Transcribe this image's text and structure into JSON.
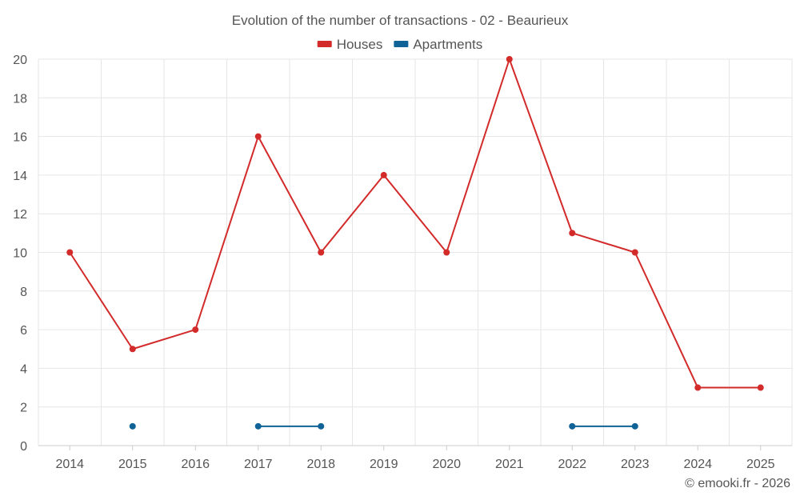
{
  "chart_data": {
    "type": "line",
    "title": "Evolution of the number of transactions - 02 - Beaurieux",
    "credit": "© emooki.fr - 2026",
    "categories": [
      "2014",
      "2015",
      "2016",
      "2017",
      "2018",
      "2019",
      "2020",
      "2021",
      "2022",
      "2023",
      "2024",
      "2025"
    ],
    "ylim": [
      0,
      20
    ],
    "yticks": [
      0,
      2,
      4,
      6,
      8,
      10,
      12,
      14,
      16,
      18,
      20
    ],
    "grid": true,
    "legend_position": "top-center",
    "series": [
      {
        "name": "Houses",
        "color": "#d32a2a",
        "values": [
          10,
          5,
          6,
          16,
          10,
          14,
          10,
          20,
          11,
          10,
          3,
          3
        ]
      },
      {
        "name": "Apartments",
        "color": "#0f6397",
        "values": [
          null,
          1,
          null,
          1,
          1,
          null,
          null,
          null,
          1,
          1,
          null,
          null
        ]
      }
    ]
  }
}
